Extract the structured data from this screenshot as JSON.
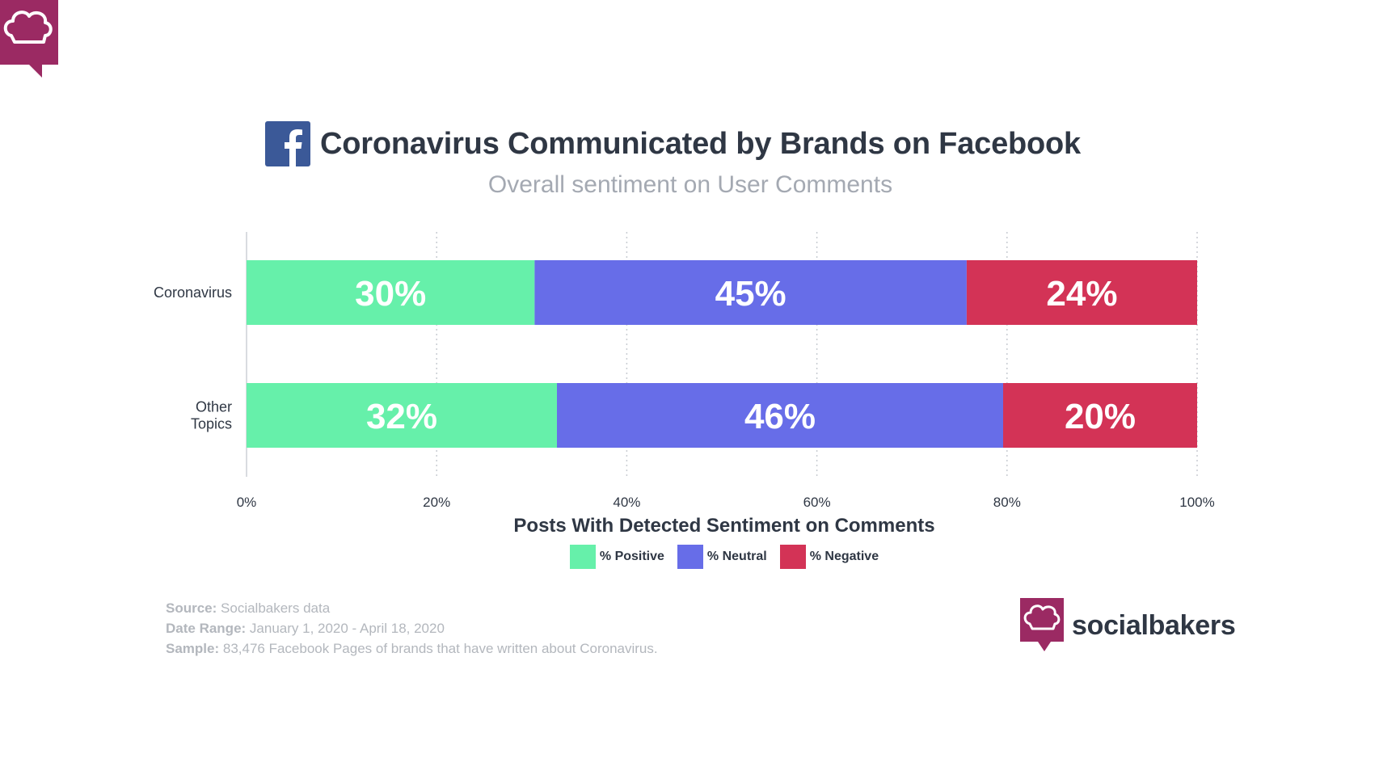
{
  "chart_data": {
    "type": "bar",
    "orientation": "horizontal",
    "stacked": true,
    "title": "Coronavirus Communicated by Brands on Facebook",
    "subtitle": "Overall sentiment on User Comments",
    "xlabel": "Posts With Detected Sentiment on Comments",
    "ylabel": "",
    "xlim": [
      0,
      100
    ],
    "x_ticks": [
      "0%",
      "20%",
      "40%",
      "60%",
      "80%",
      "100%"
    ],
    "categories": [
      {
        "label": "Coronavirus",
        "lines": [
          "Coronavirus"
        ]
      },
      {
        "label": "Other Topics",
        "lines": [
          "Other",
          "Topics"
        ]
      }
    ],
    "series": [
      {
        "name": "% Positive",
        "color": "#66f0aa",
        "values": [
          30,
          32
        ],
        "labels": [
          "30%",
          "32%"
        ]
      },
      {
        "name": "% Neutral",
        "color": "#676de8",
        "values": [
          45,
          46
        ],
        "labels": [
          "45%",
          "46%"
        ]
      },
      {
        "name": "% Negative",
        "color": "#d33356",
        "values": [
          24,
          20
        ],
        "labels": [
          "24%",
          "20%"
        ]
      }
    ],
    "grid": "vertical dotted",
    "legend_position": "bottom-center"
  },
  "footer": {
    "source_label": "Source:",
    "source_value": " Socialbakers data",
    "range_label": "Date Range:",
    "range_value": " January 1, 2020 - April 18, 2020",
    "sample_label": "Sample:",
    "sample_value": " 83,476 Facebook Pages of brands that have written about Coronavirus."
  },
  "brand": {
    "name": "socialbakers",
    "logo_icon": "chef-hat-speech-bubble-icon"
  },
  "icons": {
    "facebook": "facebook-icon",
    "corner": "chef-hat-speech-bubble-icon"
  },
  "colors": {
    "brand": "#9b2a63",
    "facebook": "#3b5998",
    "title": "#2f3744",
    "subtitle": "#a4a9b2"
  }
}
